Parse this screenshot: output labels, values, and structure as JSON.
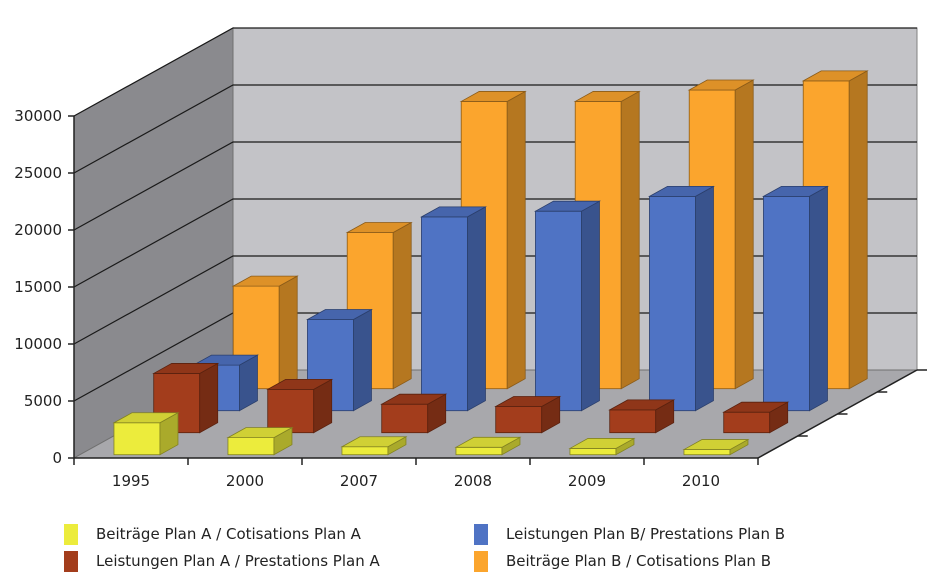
{
  "chart_data": {
    "type": "bar",
    "subtype": "3d-clustered-depth",
    "categories": [
      "1995",
      "2000",
      "2007",
      "2008",
      "2009",
      "2010"
    ],
    "series": [
      {
        "name": "Beiträge Plan A / Cotisations Plan A",
        "values": [
          2800,
          1500,
          700,
          650,
          550,
          450
        ],
        "color": "#ecec3c"
      },
      {
        "name": "Leistungen Plan A / Prestations Plan A",
        "values": [
          5200,
          3800,
          2500,
          2300,
          2000,
          1800
        ],
        "color": "#a33d1c"
      },
      {
        "name": "Leistungen Plan B/ Prestations Plan B",
        "values": [
          4000,
          8000,
          17000,
          17500,
          18800,
          18800
        ],
        "color": "#4f73c4"
      },
      {
        "name": "Beiträge Plan B / Cotisations Plan B",
        "values": [
          9000,
          13700,
          25200,
          25200,
          26200,
          27000
        ],
        "color": "#fba52d"
      }
    ],
    "ylim": [
      0,
      30000
    ],
    "yticks": [
      "0",
      "5000",
      "10000",
      "15000",
      "20000",
      "25000",
      "30000"
    ],
    "grid": true,
    "legend_position": "bottom"
  }
}
